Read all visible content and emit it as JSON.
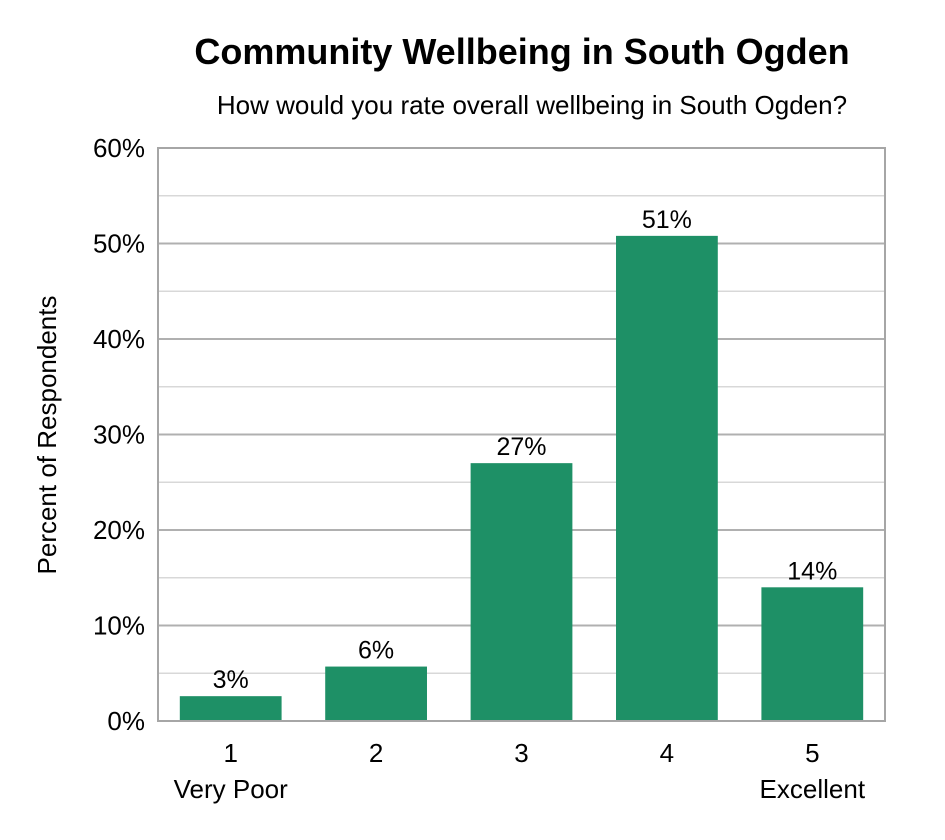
{
  "chart_data": {
    "type": "bar",
    "title": "Community Wellbeing in South Ogden",
    "subtitle": "How would you rate overall wellbeing in South Ogden?",
    "ylabel": "Percent of Respondents",
    "xlabel": "",
    "categories": [
      "1",
      "2",
      "3",
      "4",
      "5"
    ],
    "category_sublabels": [
      "Very Poor",
      "",
      "",
      "",
      "Excellent"
    ],
    "values": [
      2.6,
      5.7,
      27.0,
      50.8,
      14.0
    ],
    "data_labels": [
      "3%",
      "6%",
      "27%",
      "51%",
      "14%"
    ],
    "ylim": [
      0,
      60
    ],
    "yticks": [
      0,
      10,
      20,
      30,
      40,
      50,
      60
    ],
    "ytick_labels": [
      "0%",
      "10%",
      "20%",
      "30%",
      "40%",
      "50%",
      "60%"
    ],
    "grid": true,
    "bar_color": "#1e9066",
    "grid_color": "#b0b0b0",
    "minor_grid_color": "#d8d8d8"
  }
}
